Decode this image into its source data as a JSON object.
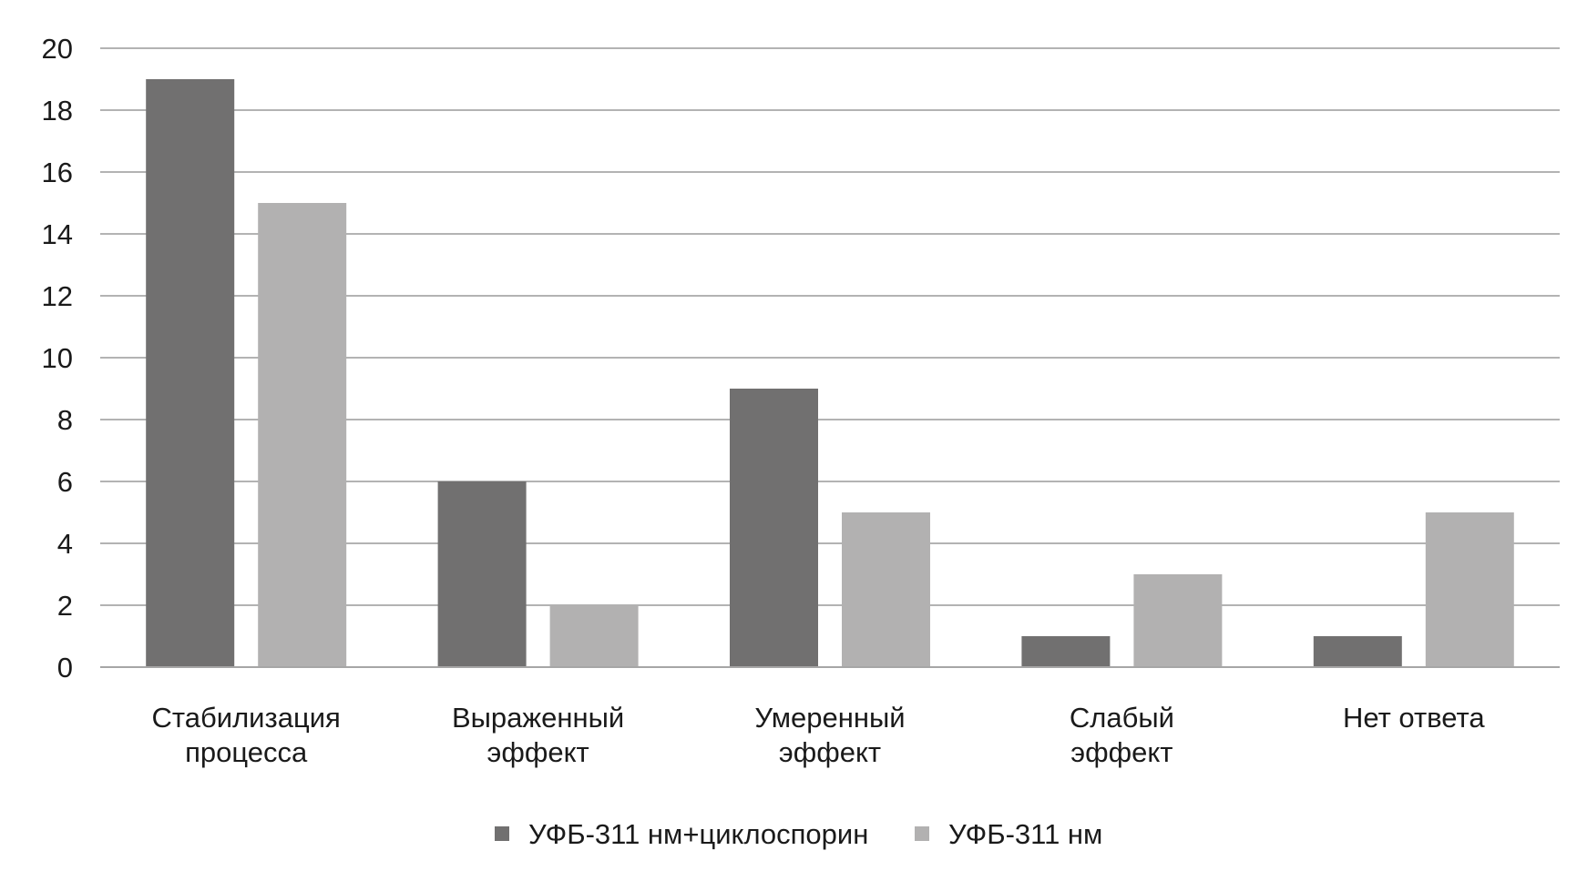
{
  "chart_data": {
    "type": "bar",
    "title": "",
    "xlabel": "",
    "ylabel": "",
    "categories": [
      [
        "Стабилизация",
        "процесса"
      ],
      [
        "Выраженный",
        "эффект"
      ],
      [
        "Умеренный",
        "эффект"
      ],
      [
        "Слабый",
        "эффект"
      ],
      [
        "Нет ответа"
      ]
    ],
    "series": [
      {
        "name": "УФБ-311 нм+циклоспорин",
        "color": "#717070",
        "values": [
          19,
          6,
          9,
          1,
          1
        ]
      },
      {
        "name": "УФБ-311 нм",
        "color": "#b2b1b1",
        "values": [
          15,
          2,
          5,
          3,
          5
        ]
      }
    ],
    "ylim": [
      0,
      20
    ],
    "yticks": [
      0,
      2,
      4,
      6,
      8,
      10,
      12,
      14,
      16,
      18,
      20
    ],
    "grid": true,
    "legend_position": "bottom"
  }
}
